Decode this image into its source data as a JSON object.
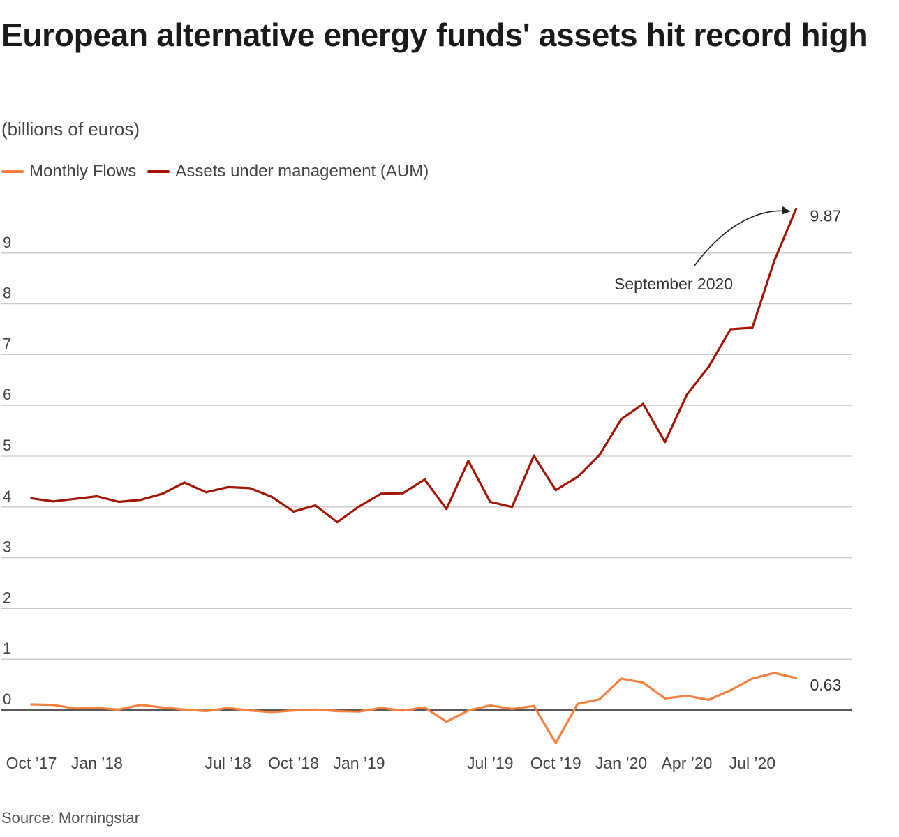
{
  "title": "European alternative energy funds' assets hit record high",
  "subtitle": "(billions of euros)",
  "source": "Source: Morningstar",
  "colors": {
    "flows": "#f4813f",
    "aum": "#a31505",
    "grid": "#c9c9c9",
    "zero": "#222222"
  },
  "chart_data": {
    "type": "line",
    "title": "European alternative energy funds' assets hit record high",
    "ylabel": "(billions of euros)",
    "ylim": [
      -0.7,
      10.2
    ],
    "yticks": [
      0,
      1,
      2,
      3,
      4,
      5,
      6,
      7,
      8,
      9
    ],
    "grid": true,
    "legend": "top-left",
    "x": [
      "2017-10",
      "2017-11",
      "2017-12",
      "2018-01",
      "2018-02",
      "2018-03",
      "2018-04",
      "2018-05",
      "2018-06",
      "2018-07",
      "2018-08",
      "2018-09",
      "2018-10",
      "2018-11",
      "2018-12",
      "2019-01",
      "2019-02",
      "2019-03",
      "2019-04",
      "2019-05",
      "2019-06",
      "2019-07",
      "2019-08",
      "2019-09",
      "2019-10",
      "2019-11",
      "2019-12",
      "2020-01",
      "2020-02",
      "2020-03",
      "2020-04",
      "2020-05",
      "2020-06",
      "2020-07",
      "2020-08",
      "2020-09"
    ],
    "xtick_labels": [
      {
        "index": 0,
        "label": "Oct ’17"
      },
      {
        "index": 3,
        "label": "Jan ’18"
      },
      {
        "index": 9,
        "label": "Jul ’18"
      },
      {
        "index": 12,
        "label": "Oct ’18"
      },
      {
        "index": 15,
        "label": "Jan ’19"
      },
      {
        "index": 21,
        "label": "Jul ’19"
      },
      {
        "index": 24,
        "label": "Oct ’19"
      },
      {
        "index": 27,
        "label": "Jan ’20"
      },
      {
        "index": 30,
        "label": "Apr ’20"
      },
      {
        "index": 33,
        "label": "Jul ’20"
      }
    ],
    "series": [
      {
        "name": "Monthly Flows",
        "color": "#f4813f",
        "values": [
          0.11,
          0.1,
          0.03,
          0.04,
          0.01,
          0.1,
          0.05,
          0.01,
          -0.02,
          0.04,
          -0.01,
          -0.04,
          -0.01,
          0.01,
          -0.02,
          -0.03,
          0.04,
          -0.01,
          0.05,
          -0.23,
          -0.01,
          0.09,
          0.02,
          0.08,
          -0.65,
          0.12,
          0.21,
          0.62,
          0.54,
          0.23,
          0.28,
          0.2,
          0.39,
          0.62,
          0.73,
          0.63
        ],
        "end_label": "0.63"
      },
      {
        "name": "Assets under management (AUM)",
        "color": "#a31505",
        "values": [
          4.17,
          4.11,
          4.16,
          4.21,
          4.1,
          4.14,
          4.26,
          4.48,
          4.29,
          4.39,
          4.37,
          4.2,
          3.91,
          4.03,
          3.7,
          4.01,
          4.26,
          4.27,
          4.54,
          3.96,
          4.91,
          4.1,
          4.0,
          5.01,
          4.33,
          4.59,
          5.02,
          5.73,
          6.03,
          5.28,
          6.21,
          6.76,
          7.5,
          7.53,
          8.84,
          9.87
        ],
        "end_label": "9.87"
      }
    ],
    "annotations": [
      {
        "text": "September 2020",
        "target_index": 35,
        "target_series": "Assets under management (AUM)"
      }
    ]
  }
}
